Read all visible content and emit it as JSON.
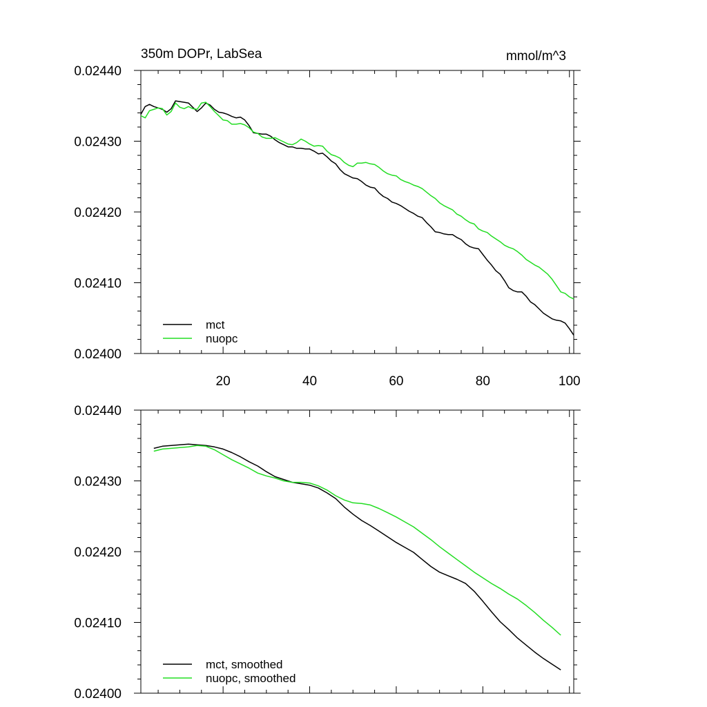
{
  "figure": {
    "title_left": "350m DOPr, LabSea",
    "title_right": "mmol/m^3"
  },
  "colors": {
    "mct": "#000000",
    "nuopc": "#22dd22",
    "axis": "#000000"
  },
  "chart_data": [
    {
      "type": "line",
      "title": "350m DOPr, LabSea",
      "units": "mmol/m^3",
      "xlabel": "",
      "ylabel": "",
      "xlim": [
        1,
        101
      ],
      "ylim": [
        0.024,
        0.0244
      ],
      "x_ticks": [
        20,
        40,
        60,
        80,
        100
      ],
      "x_tick_labels": [
        "20",
        "40",
        "60",
        "80",
        "100"
      ],
      "y_ticks": [
        0.024,
        0.0241,
        0.0242,
        0.0243,
        0.0244
      ],
      "y_tick_labels": [
        "0.02400",
        "0.02410",
        "0.02420",
        "0.02430",
        "0.02440"
      ],
      "legend_position": "bottom-left",
      "series": [
        {
          "name": "mct",
          "color": "#000000",
          "x": [
            1,
            2,
            3,
            4,
            5,
            6,
            7,
            8,
            9,
            10,
            11,
            12,
            13,
            14,
            15,
            16,
            17,
            18,
            19,
            20,
            21,
            22,
            23,
            24,
            25,
            26,
            27,
            28,
            29,
            30,
            31,
            32,
            33,
            34,
            35,
            36,
            37,
            38,
            39,
            40,
            41,
            42,
            43,
            44,
            45,
            46,
            47,
            48,
            49,
            50,
            51,
            52,
            53,
            54,
            55,
            56,
            57,
            58,
            59,
            60,
            61,
            62,
            63,
            64,
            65,
            66,
            67,
            68,
            69,
            70,
            71,
            72,
            73,
            74,
            75,
            76,
            77,
            78,
            79,
            80,
            81,
            82,
            83,
            84,
            85,
            86,
            87,
            88,
            89,
            90,
            91,
            92,
            93,
            94,
            95,
            96,
            97,
            98,
            99,
            100,
            101
          ],
          "values": [
            0.024338,
            0.024349,
            0.024352,
            0.024349,
            0.024347,
            0.024345,
            0.024341,
            0.024346,
            0.024357,
            0.024356,
            0.024355,
            0.024354,
            0.024348,
            0.024342,
            0.024347,
            0.024354,
            0.024351,
            0.024345,
            0.024341,
            0.02434,
            0.024338,
            0.024335,
            0.024333,
            0.024334,
            0.02433,
            0.024322,
            0.024312,
            0.024311,
            0.02431,
            0.02431,
            0.024307,
            0.024302,
            0.024298,
            0.024295,
            0.024292,
            0.024292,
            0.02429,
            0.02429,
            0.024289,
            0.024289,
            0.024286,
            0.024282,
            0.024283,
            0.024278,
            0.024272,
            0.024268,
            0.02426,
            0.024254,
            0.024251,
            0.024248,
            0.024247,
            0.024243,
            0.024238,
            0.024235,
            0.024234,
            0.024227,
            0.024222,
            0.024219,
            0.024214,
            0.024212,
            0.024209,
            0.024205,
            0.024201,
            0.024198,
            0.024194,
            0.024192,
            0.024185,
            0.024179,
            0.024172,
            0.024171,
            0.024169,
            0.024168,
            0.024168,
            0.024164,
            0.024161,
            0.024155,
            0.024151,
            0.024149,
            0.024148,
            0.02414,
            0.024132,
            0.024125,
            0.024117,
            0.024112,
            0.024103,
            0.024093,
            0.024089,
            0.024087,
            0.024087,
            0.024081,
            0.024073,
            0.024069,
            0.024063,
            0.024057,
            0.024053,
            0.024049,
            0.024047,
            0.024046,
            0.024043,
            0.024035,
            0.024026
          ]
        },
        {
          "name": "nuopc",
          "color": "#22dd22",
          "x": [
            1,
            2,
            3,
            4,
            5,
            6,
            7,
            8,
            9,
            10,
            11,
            12,
            13,
            14,
            15,
            16,
            17,
            18,
            19,
            20,
            21,
            22,
            23,
            24,
            25,
            26,
            27,
            28,
            29,
            30,
            31,
            32,
            33,
            34,
            35,
            36,
            37,
            38,
            39,
            40,
            41,
            42,
            43,
            44,
            45,
            46,
            47,
            48,
            49,
            50,
            51,
            52,
            53,
            54,
            55,
            56,
            57,
            58,
            59,
            60,
            61,
            62,
            63,
            64,
            65,
            66,
            67,
            68,
            69,
            70,
            71,
            72,
            73,
            74,
            75,
            76,
            77,
            78,
            79,
            80,
            81,
            82,
            83,
            84,
            85,
            86,
            87,
            88,
            89,
            90,
            91,
            92,
            93,
            94,
            95,
            96,
            97,
            98,
            99,
            100,
            101
          ],
          "values": [
            0.024336,
            0.024333,
            0.024343,
            0.024345,
            0.024347,
            0.024346,
            0.024337,
            0.024342,
            0.024354,
            0.024348,
            0.024346,
            0.024349,
            0.024346,
            0.024345,
            0.024354,
            0.024355,
            0.024349,
            0.024342,
            0.024336,
            0.02433,
            0.024329,
            0.024324,
            0.024324,
            0.024325,
            0.024323,
            0.024319,
            0.024313,
            0.024311,
            0.024306,
            0.024304,
            0.024304,
            0.024305,
            0.024302,
            0.024299,
            0.024296,
            0.024295,
            0.024298,
            0.024303,
            0.0243,
            0.024296,
            0.024293,
            0.024294,
            0.024293,
            0.024286,
            0.024281,
            0.024279,
            0.024276,
            0.02427,
            0.024266,
            0.024264,
            0.024269,
            0.024269,
            0.02427,
            0.024268,
            0.024267,
            0.024263,
            0.024258,
            0.024254,
            0.024252,
            0.024251,
            0.024246,
            0.024243,
            0.024241,
            0.024238,
            0.024236,
            0.024233,
            0.024228,
            0.024223,
            0.024219,
            0.024213,
            0.024209,
            0.024206,
            0.024203,
            0.024197,
            0.024194,
            0.024189,
            0.024185,
            0.024183,
            0.024176,
            0.024173,
            0.024171,
            0.024166,
            0.024162,
            0.024158,
            0.024153,
            0.02415,
            0.024148,
            0.024144,
            0.024139,
            0.024133,
            0.024129,
            0.024125,
            0.024122,
            0.024117,
            0.024112,
            0.024105,
            0.024096,
            0.024087,
            0.024085,
            0.02408,
            0.024077
          ]
        }
      ]
    },
    {
      "type": "line",
      "title": "",
      "xlabel": "",
      "ylabel": "",
      "xlim": [
        1,
        101
      ],
      "ylim": [
        0.024,
        0.0244
      ],
      "x_ticks": [
        20,
        40,
        60,
        80,
        100
      ],
      "x_tick_labels": [],
      "y_ticks": [
        0.024,
        0.0241,
        0.0242,
        0.0243,
        0.0244
      ],
      "y_tick_labels": [
        "0.02400",
        "0.02410",
        "0.02420",
        "0.02430",
        "0.02440"
      ],
      "legend_position": "bottom-left",
      "series": [
        {
          "name": "mct, smoothed",
          "color": "#000000",
          "x": [
            4,
            6,
            8,
            10,
            12,
            14,
            16,
            18,
            20,
            22,
            24,
            26,
            28,
            30,
            32,
            34,
            36,
            38,
            40,
            42,
            44,
            46,
            48,
            50,
            52,
            54,
            56,
            58,
            60,
            62,
            64,
            66,
            68,
            70,
            72,
            74,
            76,
            78,
            80,
            82,
            84,
            86,
            88,
            90,
            92,
            94,
            96,
            98
          ],
          "values": [
            0.024346,
            0.024349,
            0.02435,
            0.024351,
            0.024352,
            0.024351,
            0.02435,
            0.024348,
            0.024345,
            0.02434,
            0.024334,
            0.024327,
            0.024321,
            0.024313,
            0.024306,
            0.024302,
            0.024298,
            0.024296,
            0.024294,
            0.02429,
            0.024283,
            0.024275,
            0.024263,
            0.024253,
            0.024244,
            0.024237,
            0.024229,
            0.024221,
            0.024213,
            0.024206,
            0.024199,
            0.024189,
            0.024179,
            0.024171,
            0.024166,
            0.024161,
            0.024155,
            0.024144,
            0.02413,
            0.024115,
            0.024101,
            0.02409,
            0.024078,
            0.024068,
            0.024058,
            0.024049,
            0.024041,
            0.024033
          ]
        },
        {
          "name": "nuopc, smoothed",
          "color": "#22dd22",
          "x": [
            4,
            6,
            8,
            10,
            12,
            14,
            16,
            18,
            20,
            22,
            24,
            26,
            28,
            30,
            32,
            34,
            36,
            38,
            40,
            42,
            44,
            46,
            48,
            50,
            52,
            54,
            56,
            58,
            60,
            62,
            64,
            66,
            68,
            70,
            72,
            74,
            76,
            78,
            80,
            82,
            84,
            86,
            88,
            90,
            92,
            94,
            96,
            98
          ],
          "values": [
            0.024342,
            0.024345,
            0.024346,
            0.024347,
            0.024348,
            0.02435,
            0.024349,
            0.024344,
            0.024337,
            0.02433,
            0.024324,
            0.024318,
            0.024311,
            0.024307,
            0.024304,
            0.0243,
            0.024298,
            0.024298,
            0.024297,
            0.024293,
            0.024287,
            0.024279,
            0.024273,
            0.024269,
            0.024268,
            0.024266,
            0.024261,
            0.024255,
            0.024249,
            0.024242,
            0.024235,
            0.024226,
            0.024217,
            0.024207,
            0.024198,
            0.024189,
            0.02418,
            0.024171,
            0.024163,
            0.024155,
            0.024148,
            0.02414,
            0.024133,
            0.024124,
            0.024114,
            0.024103,
            0.024093,
            0.024082
          ]
        }
      ]
    }
  ]
}
